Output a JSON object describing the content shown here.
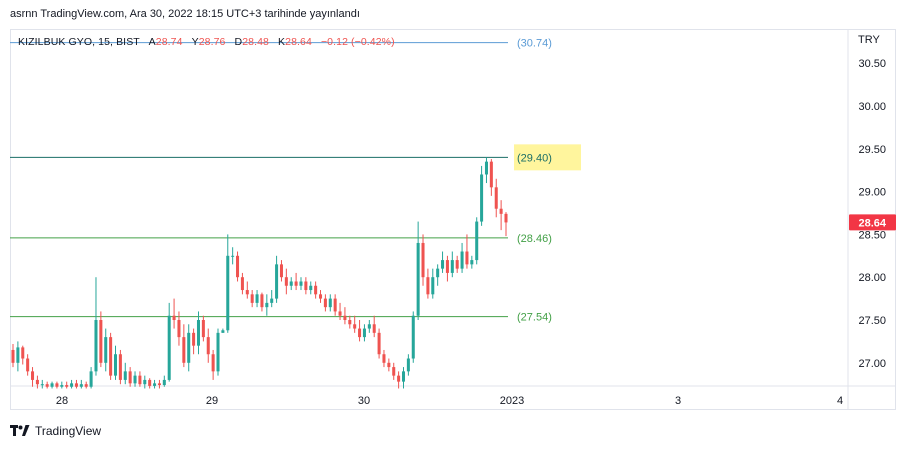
{
  "header": {
    "published_text": "asrnn TradingView.com, Ara 30, 2022 18:15 UTC+3 tarihinde yayınlandı"
  },
  "legend": {
    "symbol": "KIZILBUK GYO, 15, BIST",
    "open_label": "A",
    "open_value": "28.74",
    "high_label": "Y",
    "high_value": "28.76",
    "low_label": "D",
    "low_value": "28.48",
    "close_label": "K",
    "close_value": "28.64",
    "change": "−0.12 (−0.42%)"
  },
  "currency": "TRY",
  "footer": {
    "brand": "TradingView",
    "logo_icon": "tradingview-logo-icon"
  },
  "chart_data": {
    "type": "candlestick",
    "symbol": "KIZILBUK GYO",
    "interval": "15",
    "exchange": "BIST",
    "y_axis": {
      "ticks": [
        "30.50",
        "30.00",
        "29.50",
        "29.00",
        "28.50",
        "28.00",
        "27.50",
        "27.00"
      ],
      "range": [
        26.7,
        30.95
      ]
    },
    "x_axis": {
      "ticks": [
        "28",
        "29",
        "30",
        "2023",
        "3",
        "4"
      ]
    },
    "last_price": "28.64",
    "last_price_color": "#f23645",
    "horizontal_levels": [
      {
        "value": 30.74,
        "label": "(30.74)",
        "color": "#5b9bd5"
      },
      {
        "value": 29.4,
        "label": "(29.40)",
        "color": "#1a6e66",
        "highlight": "#fff59d"
      },
      {
        "value": 28.46,
        "label": "(28.46)",
        "color": "#43a047"
      },
      {
        "value": 27.54,
        "label": "(27.54)",
        "color": "#43a047"
      }
    ],
    "colors": {
      "up": "#26a69a",
      "down": "#ef5350"
    },
    "candles": [
      [
        27.15,
        27.22,
        26.95,
        27.0
      ],
      [
        27.0,
        27.25,
        26.9,
        27.18
      ],
      [
        27.18,
        27.2,
        26.98,
        27.05
      ],
      [
        27.05,
        27.1,
        26.85,
        26.9
      ],
      [
        26.9,
        26.95,
        26.72,
        26.8
      ],
      [
        26.8,
        26.85,
        26.7,
        26.75
      ],
      [
        26.75,
        26.8,
        26.7,
        26.75
      ],
      [
        26.75,
        26.78,
        26.7,
        26.72
      ],
      [
        26.72,
        26.78,
        26.7,
        26.76
      ],
      [
        26.76,
        26.78,
        26.7,
        26.72
      ],
      [
        26.72,
        26.78,
        26.7,
        26.74
      ],
      [
        26.74,
        26.78,
        26.7,
        26.72
      ],
      [
        26.72,
        26.8,
        26.7,
        26.76
      ],
      [
        26.76,
        26.8,
        26.7,
        26.72
      ],
      [
        26.72,
        26.8,
        26.7,
        26.75
      ],
      [
        26.75,
        26.78,
        26.7,
        26.72
      ],
      [
        26.72,
        26.95,
        26.7,
        26.9
      ],
      [
        26.9,
        28.0,
        26.85,
        27.5
      ],
      [
        27.5,
        27.6,
        26.95,
        27.0
      ],
      [
        27.0,
        27.4,
        26.9,
        27.3
      ],
      [
        27.3,
        27.35,
        26.8,
        26.85
      ],
      [
        26.85,
        27.2,
        26.8,
        27.1
      ],
      [
        27.1,
        27.15,
        26.75,
        26.8
      ],
      [
        26.8,
        27.0,
        26.75,
        26.9
      ],
      [
        26.9,
        26.95,
        26.72,
        26.76
      ],
      [
        26.76,
        26.9,
        26.72,
        26.85
      ],
      [
        26.85,
        26.9,
        26.72,
        26.75
      ],
      [
        26.75,
        26.85,
        26.7,
        26.8
      ],
      [
        26.8,
        26.82,
        26.7,
        26.73
      ],
      [
        26.73,
        26.8,
        26.7,
        26.76
      ],
      [
        26.76,
        26.8,
        26.7,
        26.74
      ],
      [
        26.74,
        26.85,
        26.72,
        26.8
      ],
      [
        26.8,
        27.7,
        26.78,
        27.55
      ],
      [
        27.55,
        27.75,
        27.4,
        27.5
      ],
      [
        27.5,
        27.6,
        27.2,
        27.3
      ],
      [
        27.3,
        27.45,
        26.95,
        27.0
      ],
      [
        27.0,
        27.45,
        26.9,
        27.35
      ],
      [
        27.35,
        27.4,
        27.1,
        27.2
      ],
      [
        27.2,
        27.6,
        27.1,
        27.5
      ],
      [
        27.5,
        27.55,
        27.25,
        27.3
      ],
      [
        27.3,
        27.4,
        27.0,
        27.1
      ],
      [
        27.1,
        27.15,
        26.8,
        26.9
      ],
      [
        26.9,
        27.4,
        26.85,
        27.35
      ],
      [
        27.35,
        27.4,
        27.35,
        27.38
      ],
      [
        27.38,
        28.5,
        27.35,
        28.25
      ],
      [
        28.25,
        28.35,
        28.15,
        28.25
      ],
      [
        28.25,
        28.3,
        27.95,
        28.0
      ],
      [
        28.0,
        28.05,
        27.8,
        27.85
      ],
      [
        27.85,
        27.95,
        27.75,
        27.8
      ],
      [
        27.8,
        27.85,
        27.65,
        27.7
      ],
      [
        27.7,
        27.85,
        27.65,
        27.8
      ],
      [
        27.8,
        27.82,
        27.6,
        27.65
      ],
      [
        27.65,
        27.8,
        27.55,
        27.7
      ],
      [
        27.7,
        27.85,
        27.65,
        27.75
      ],
      [
        27.75,
        28.25,
        27.7,
        28.15
      ],
      [
        28.15,
        28.2,
        27.95,
        28.0
      ],
      [
        28.0,
        28.1,
        27.8,
        27.9
      ],
      [
        27.9,
        28.0,
        27.85,
        27.95
      ],
      [
        27.95,
        28.05,
        27.85,
        27.9
      ],
      [
        27.9,
        28.0,
        27.85,
        27.95
      ],
      [
        27.95,
        28.0,
        27.8,
        27.85
      ],
      [
        27.85,
        27.95,
        27.8,
        27.9
      ],
      [
        27.9,
        27.95,
        27.75,
        27.8
      ],
      [
        27.8,
        27.85,
        27.7,
        27.75
      ],
      [
        27.75,
        27.8,
        27.6,
        27.65
      ],
      [
        27.65,
        27.8,
        27.6,
        27.75
      ],
      [
        27.75,
        27.8,
        27.55,
        27.6
      ],
      [
        27.6,
        27.7,
        27.5,
        27.55
      ],
      [
        27.55,
        27.65,
        27.45,
        27.5
      ],
      [
        27.5,
        27.55,
        27.4,
        27.45
      ],
      [
        27.45,
        27.55,
        27.35,
        27.4
      ],
      [
        27.4,
        27.5,
        27.25,
        27.3
      ],
      [
        27.3,
        27.45,
        27.25,
        27.4
      ],
      [
        27.4,
        27.5,
        27.35,
        27.45
      ],
      [
        27.45,
        27.55,
        27.3,
        27.35
      ],
      [
        27.35,
        27.4,
        27.05,
        27.1
      ],
      [
        27.1,
        27.15,
        26.95,
        27.0
      ],
      [
        27.0,
        27.05,
        26.9,
        26.95
      ],
      [
        26.95,
        27.0,
        26.8,
        26.85
      ],
      [
        26.85,
        26.9,
        26.7,
        26.78
      ],
      [
        26.78,
        26.95,
        26.7,
        26.9
      ],
      [
        26.9,
        27.1,
        26.85,
        27.05
      ],
      [
        27.05,
        27.6,
        27.0,
        27.55
      ],
      [
        27.55,
        28.65,
        27.5,
        28.4
      ],
      [
        28.4,
        28.5,
        27.9,
        28.0
      ],
      [
        28.0,
        28.1,
        27.75,
        27.8
      ],
      [
        27.8,
        28.1,
        27.75,
        28.0
      ],
      [
        28.0,
        28.15,
        27.9,
        28.1
      ],
      [
        28.1,
        28.3,
        28.05,
        28.2
      ],
      [
        28.2,
        28.25,
        27.95,
        28.05
      ],
      [
        28.05,
        28.3,
        28.0,
        28.2
      ],
      [
        28.2,
        28.25,
        28.05,
        28.1
      ],
      [
        28.1,
        28.4,
        28.05,
        28.3
      ],
      [
        28.3,
        28.5,
        28.1,
        28.15
      ],
      [
        28.15,
        28.25,
        28.1,
        28.2
      ],
      [
        28.2,
        28.7,
        28.15,
        28.65
      ],
      [
        28.65,
        29.3,
        28.6,
        29.2
      ],
      [
        29.2,
        29.4,
        29.1,
        29.35
      ],
      [
        29.35,
        29.38,
        28.95,
        29.05
      ],
      [
        29.05,
        29.15,
        28.7,
        28.8
      ],
      [
        28.8,
        28.9,
        28.55,
        28.74
      ],
      [
        28.74,
        28.76,
        28.48,
        28.64
      ]
    ]
  }
}
